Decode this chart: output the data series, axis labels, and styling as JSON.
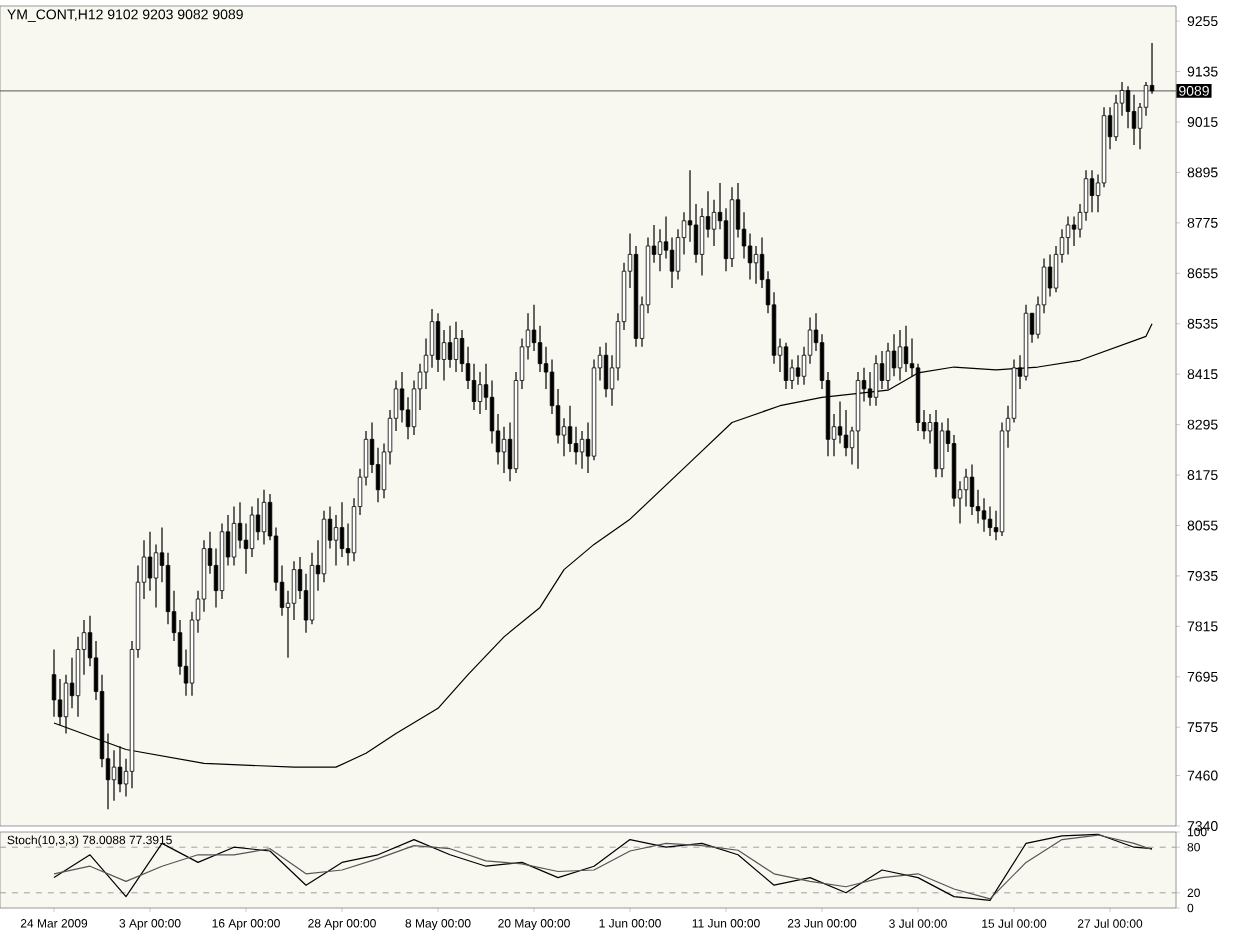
{
  "chart_data": [
    {
      "type": "candlestick",
      "title": "YM_CONT,H12 9102 9203 9082 9089",
      "color": "#000000",
      "tick_labels": "y",
      "ohlc": [
        [
          7700,
          7760,
          7600,
          7640
        ],
        [
          7640,
          7690,
          7580,
          7600
        ],
        [
          7600,
          7700,
          7560,
          7680
        ],
        [
          7680,
          7740,
          7620,
          7650
        ],
        [
          7650,
          7790,
          7600,
          7760
        ],
        [
          7760,
          7830,
          7700,
          7800
        ],
        [
          7800,
          7840,
          7720,
          7740
        ],
        [
          7740,
          7780,
          7640,
          7660
        ],
        [
          7660,
          7700,
          7480,
          7500
        ],
        [
          7500,
          7560,
          7380,
          7450
        ],
        [
          7450,
          7520,
          7400,
          7480
        ],
        [
          7480,
          7530,
          7420,
          7440
        ],
        [
          7440,
          7500,
          7410,
          7470
        ],
        [
          7470,
          7780,
          7430,
          7760
        ],
        [
          7760,
          7960,
          7740,
          7920
        ],
        [
          7920,
          8020,
          7880,
          7980
        ],
        [
          7980,
          8040,
          7900,
          7930
        ],
        [
          7930,
          8010,
          7860,
          7990
        ],
        [
          7990,
          8050,
          7920,
          7960
        ],
        [
          7960,
          7990,
          7820,
          7850
        ],
        [
          7850,
          7900,
          7780,
          7800
        ],
        [
          7800,
          7830,
          7700,
          7720
        ],
        [
          7720,
          7760,
          7650,
          7680
        ],
        [
          7680,
          7850,
          7650,
          7830
        ],
        [
          7830,
          7900,
          7800,
          7880
        ],
        [
          7880,
          8020,
          7850,
          8000
        ],
        [
          8000,
          8040,
          7940,
          7960
        ],
        [
          7960,
          8000,
          7860,
          7900
        ],
        [
          7900,
          8060,
          7880,
          8040
        ],
        [
          8040,
          8080,
          7960,
          7980
        ],
        [
          7980,
          8100,
          7960,
          8060
        ],
        [
          8060,
          8110,
          8000,
          8020
        ],
        [
          8020,
          8060,
          7940,
          8000
        ],
        [
          8000,
          8100,
          7980,
          8080
        ],
        [
          8080,
          8120,
          8020,
          8040
        ],
        [
          8040,
          8140,
          8010,
          8110
        ],
        [
          8110,
          8130,
          8020,
          8030
        ],
        [
          8030,
          8050,
          7900,
          7920
        ],
        [
          7920,
          7960,
          7840,
          7860
        ],
        [
          7860,
          7900,
          7740,
          7870
        ],
        [
          7870,
          7970,
          7830,
          7950
        ],
        [
          7950,
          7980,
          7880,
          7900
        ],
        [
          7900,
          7940,
          7800,
          7830
        ],
        [
          7830,
          7990,
          7820,
          7960
        ],
        [
          7960,
          8020,
          7900,
          7940
        ],
        [
          7940,
          8090,
          7920,
          8070
        ],
        [
          8070,
          8100,
          8000,
          8020
        ],
        [
          8020,
          8080,
          7960,
          8050
        ],
        [
          8050,
          8110,
          7980,
          8000
        ],
        [
          8000,
          8060,
          7960,
          7990
        ],
        [
          7990,
          8120,
          7970,
          8100
        ],
        [
          8100,
          8190,
          8080,
          8170
        ],
        [
          8170,
          8280,
          8150,
          8260
        ],
        [
          8260,
          8300,
          8180,
          8200
        ],
        [
          8200,
          8240,
          8110,
          8140
        ],
        [
          8140,
          8250,
          8120,
          8230
        ],
        [
          8230,
          8330,
          8200,
          8310
        ],
        [
          8310,
          8400,
          8280,
          8380
        ],
        [
          8380,
          8420,
          8300,
          8330
        ],
        [
          8330,
          8360,
          8260,
          8290
        ],
        [
          8290,
          8400,
          8270,
          8380
        ],
        [
          8380,
          8440,
          8330,
          8420
        ],
        [
          8420,
          8500,
          8380,
          8460
        ],
        [
          8460,
          8570,
          8430,
          8540
        ],
        [
          8540,
          8560,
          8420,
          8450
        ],
        [
          8450,
          8520,
          8400,
          8490
        ],
        [
          8490,
          8530,
          8430,
          8450
        ],
        [
          8450,
          8540,
          8420,
          8500
        ],
        [
          8500,
          8520,
          8420,
          8440
        ],
        [
          8440,
          8480,
          8380,
          8400
        ],
        [
          8400,
          8440,
          8330,
          8350
        ],
        [
          8350,
          8420,
          8320,
          8390
        ],
        [
          8390,
          8440,
          8330,
          8360
        ],
        [
          8360,
          8400,
          8250,
          8280
        ],
        [
          8280,
          8320,
          8200,
          8230
        ],
        [
          8230,
          8290,
          8180,
          8260
        ],
        [
          8260,
          8300,
          8160,
          8190
        ],
        [
          8190,
          8420,
          8180,
          8400
        ],
        [
          8400,
          8500,
          8380,
          8480
        ],
        [
          8480,
          8560,
          8450,
          8520
        ],
        [
          8520,
          8580,
          8470,
          8490
        ],
        [
          8490,
          8530,
          8420,
          8440
        ],
        [
          8440,
          8480,
          8380,
          8420
        ],
        [
          8420,
          8450,
          8320,
          8340
        ],
        [
          8340,
          8380,
          8250,
          8270
        ],
        [
          8270,
          8310,
          8220,
          8290
        ],
        [
          8290,
          8340,
          8230,
          8250
        ],
        [
          8250,
          8290,
          8200,
          8230
        ],
        [
          8230,
          8280,
          8190,
          8260
        ],
        [
          8260,
          8300,
          8180,
          8220
        ],
        [
          8220,
          8450,
          8210,
          8430
        ],
        [
          8430,
          8480,
          8400,
          8460
        ],
        [
          8460,
          8490,
          8360,
          8380
        ],
        [
          8380,
          8460,
          8340,
          8430
        ],
        [
          8430,
          8560,
          8400,
          8540
        ],
        [
          8540,
          8680,
          8520,
          8660
        ],
        [
          8660,
          8750,
          8620,
          8700
        ],
        [
          8700,
          8720,
          8480,
          8500
        ],
        [
          8500,
          8600,
          8480,
          8580
        ],
        [
          8580,
          8740,
          8560,
          8720
        ],
        [
          8720,
          8770,
          8680,
          8700
        ],
        [
          8700,
          8760,
          8660,
          8730
        ],
        [
          8730,
          8790,
          8690,
          8710
        ],
        [
          8710,
          8740,
          8620,
          8660
        ],
        [
          8660,
          8760,
          8640,
          8740
        ],
        [
          8740,
          8800,
          8700,
          8780
        ],
        [
          8780,
          8900,
          8730,
          8770
        ],
        [
          8770,
          8820,
          8680,
          8700
        ],
        [
          8700,
          8810,
          8650,
          8790
        ],
        [
          8790,
          8850,
          8740,
          8760
        ],
        [
          8760,
          8830,
          8720,
          8800
        ],
        [
          8800,
          8870,
          8760,
          8780
        ],
        [
          8780,
          8810,
          8660,
          8690
        ],
        [
          8690,
          8860,
          8670,
          8830
        ],
        [
          8830,
          8870,
          8740,
          8760
        ],
        [
          8760,
          8800,
          8690,
          8720
        ],
        [
          8720,
          8750,
          8640,
          8680
        ],
        [
          8680,
          8720,
          8630,
          8700
        ],
        [
          8700,
          8740,
          8620,
          8640
        ],
        [
          8640,
          8660,
          8560,
          8580
        ],
        [
          8580,
          8610,
          8440,
          8460
        ],
        [
          8460,
          8500,
          8420,
          8480
        ],
        [
          8480,
          8490,
          8380,
          8400
        ],
        [
          8400,
          8450,
          8380,
          8430
        ],
        [
          8430,
          8460,
          8390,
          8410
        ],
        [
          8410,
          8480,
          8390,
          8460
        ],
        [
          8460,
          8550,
          8440,
          8520
        ],
        [
          8520,
          8560,
          8470,
          8490
        ],
        [
          8490,
          8510,
          8380,
          8400
        ],
        [
          8400,
          8420,
          8220,
          8260
        ],
        [
          8260,
          8320,
          8220,
          8290
        ],
        [
          8290,
          8350,
          8250,
          8270
        ],
        [
          8270,
          8330,
          8220,
          8240
        ],
        [
          8240,
          8290,
          8200,
          8280
        ],
        [
          8280,
          8420,
          8190,
          8400
        ],
        [
          8400,
          8430,
          8350,
          8380
        ],
        [
          8380,
          8420,
          8340,
          8360
        ],
        [
          8360,
          8460,
          8340,
          8440
        ],
        [
          8440,
          8470,
          8380,
          8400
        ],
        [
          8400,
          8490,
          8380,
          8470
        ],
        [
          8470,
          8510,
          8410,
          8430
        ],
        [
          8430,
          8520,
          8400,
          8480
        ],
        [
          8480,
          8530,
          8420,
          8440
        ],
        [
          8440,
          8500,
          8410,
          8430
        ],
        [
          8430,
          8440,
          8280,
          8300
        ],
        [
          8300,
          8330,
          8260,
          8280
        ],
        [
          8280,
          8320,
          8250,
          8300
        ],
        [
          8300,
          8330,
          8170,
          8190
        ],
        [
          8190,
          8300,
          8170,
          8280
        ],
        [
          8280,
          8310,
          8230,
          8250
        ],
        [
          8250,
          8270,
          8100,
          8120
        ],
        [
          8120,
          8160,
          8060,
          8140
        ],
        [
          8140,
          8190,
          8100,
          8170
        ],
        [
          8170,
          8200,
          8080,
          8100
        ],
        [
          8100,
          8140,
          8060,
          8090
        ],
        [
          8090,
          8120,
          8040,
          8070
        ],
        [
          8070,
          8100,
          8030,
          8050
        ],
        [
          8050,
          8090,
          8020,
          8040
        ],
        [
          8040,
          8300,
          8030,
          8280
        ],
        [
          8280,
          8340,
          8240,
          8310
        ],
        [
          8310,
          8450,
          8300,
          8430
        ],
        [
          8430,
          8460,
          8380,
          8410
        ],
        [
          8410,
          8580,
          8400,
          8560
        ],
        [
          8560,
          8560,
          8490,
          8510
        ],
        [
          8510,
          8600,
          8500,
          8580
        ],
        [
          8580,
          8690,
          8560,
          8670
        ],
        [
          8670,
          8700,
          8600,
          8620
        ],
        [
          8620,
          8720,
          8610,
          8700
        ],
        [
          8700,
          8760,
          8680,
          8740
        ],
        [
          8740,
          8790,
          8700,
          8770
        ],
        [
          8770,
          8790,
          8720,
          8760
        ],
        [
          8760,
          8820,
          8740,
          8800
        ],
        [
          8800,
          8900,
          8780,
          8880
        ],
        [
          8880,
          8900,
          8800,
          8840
        ],
        [
          8840,
          8890,
          8800,
          8870
        ],
        [
          8870,
          9050,
          8860,
          9030
        ],
        [
          9030,
          9050,
          8950,
          8980
        ],
        [
          8980,
          9080,
          8970,
          9060
        ],
        [
          9060,
          9110,
          9030,
          9090
        ],
        [
          9090,
          9100,
          9000,
          9040
        ],
        [
          9040,
          9080,
          8960,
          9000
        ],
        [
          9000,
          9060,
          8950,
          9050
        ],
        [
          9050,
          9110,
          9030,
          9102
        ],
        [
          9102,
          9203,
          9082,
          9089
        ]
      ],
      "series": [
        {
          "type": "line",
          "color": "#000000",
          "values": [
            7585,
            null,
            null,
            null,
            null,
            null,
            null,
            null,
            null,
            null,
            null,
            null,
            7522,
            null,
            null,
            null,
            null,
            null,
            null,
            null,
            null,
            null,
            null,
            null,
            null,
            7489,
            null,
            null,
            null,
            null,
            null,
            null,
            null,
            null,
            null,
            null,
            null,
            null,
            null,
            null,
            7480,
            null,
            null,
            null,
            null,
            null,
            null,
            7480,
            null,
            null,
            null,
            null,
            7513,
            null,
            null,
            null,
            null,
            7560,
            null,
            null,
            null,
            null,
            null,
            null,
            7620,
            null,
            null,
            null,
            null,
            7700,
            null,
            null,
            null,
            null,
            null,
            7790,
            null,
            null,
            null,
            null,
            null,
            7860,
            null,
            null,
            null,
            7950,
            null,
            null,
            null,
            null,
            8010,
            null,
            null,
            null,
            null,
            null,
            8070,
            null,
            null,
            null,
            null,
            null,
            null,
            null,
            null,
            null,
            8205,
            null,
            null,
            null,
            null,
            null,
            null,
            8300,
            null,
            null,
            null,
            null,
            null,
            null,
            null,
            8340,
            null,
            null,
            null,
            null,
            null,
            null,
            8360,
            null,
            null,
            null,
            null,
            null,
            null,
            null,
            null,
            null,
            null,
            8377,
            null,
            null,
            null,
            null,
            8418,
            null,
            null,
            null,
            null,
            null,
            8432,
            null,
            null,
            null,
            null,
            null,
            null,
            8425,
            null,
            null,
            null,
            null,
            null,
            null,
            8432,
            null,
            null,
            null,
            null,
            null,
            null,
            8448,
            null,
            null,
            null,
            null,
            null,
            null,
            null,
            null,
            null,
            null,
            8505,
            8535
          ]
        }
      ],
      "ylim": [
        7340,
        9291
      ],
      "yticks": [
        9255,
        9135,
        9015,
        8895,
        8775,
        8655,
        8535,
        8415,
        8295,
        8175,
        8055,
        7935,
        7815,
        7695,
        7575,
        7460,
        7340
      ],
      "ref_lines": [
        {
          "axis": "y",
          "value": 9089,
          "label": "9089",
          "color": "#555555",
          "line_style": "solid"
        }
      ]
    },
    {
      "type": "line",
      "title": "Stoch(10,3,3) 78.0088 77.3915",
      "categories": [
        "24 Mar 2009",
        null,
        null,
        null,
        null,
        null,
        null,
        null,
        null,
        null,
        null,
        null,
        null,
        null,
        null,
        null,
        "3 Apr 00:00",
        null,
        null,
        null,
        null,
        null,
        null,
        null,
        null,
        null,
        null,
        null,
        null,
        null,
        null,
        null,
        "16 Apr 00:00",
        null,
        null,
        null,
        null,
        null,
        null,
        null,
        null,
        null,
        null,
        null,
        null,
        null,
        null,
        null,
        "28 Apr 00:00",
        null,
        null,
        null,
        null,
        null,
        null,
        null,
        null,
        null,
        null,
        null,
        null,
        null,
        null,
        null,
        "8 May 00:00",
        null,
        null,
        null,
        null,
        null,
        null,
        null,
        null,
        null,
        null,
        null,
        null,
        null,
        null,
        null,
        "20 May 00:00",
        null,
        null,
        null,
        null,
        null,
        null,
        null,
        null,
        null,
        null,
        null,
        null,
        null,
        null,
        null,
        "1 Jun 00:00",
        null,
        null,
        null,
        null,
        null,
        null,
        null,
        null,
        null,
        null,
        null,
        null,
        null,
        null,
        null,
        "11 Jun 00:00",
        null,
        null,
        null,
        null,
        null,
        null,
        null,
        null,
        null,
        null,
        null,
        null,
        null,
        null,
        null,
        "23 Jun 00:00",
        null,
        null,
        null,
        null,
        null,
        null,
        null,
        null,
        null,
        null,
        null,
        null,
        null,
        null,
        null,
        "3 Jul 00:00",
        null,
        null,
        null,
        null,
        null,
        null,
        null,
        null,
        null,
        null,
        null,
        null,
        null,
        null,
        null,
        "15 Jul 00:00",
        null,
        null,
        null,
        null,
        null,
        null,
        null,
        null,
        null,
        null,
        null,
        null,
        null,
        null,
        null,
        "27 Jul 00:00",
        null,
        null,
        null,
        null,
        null,
        null,
        null
      ],
      "series": [
        {
          "color": "#000000",
          "values": [
            40,
            null,
            null,
            null,
            null,
            null,
            70,
            null,
            null,
            null,
            null,
            null,
            15,
            null,
            null,
            null,
            null,
            null,
            85,
            null,
            null,
            null,
            null,
            null,
            60,
            null,
            null,
            null,
            null,
            null,
            80,
            null,
            null,
            null,
            null,
            null,
            75,
            null,
            null,
            null,
            null,
            null,
            30,
            null,
            null,
            null,
            null,
            null,
            60,
            null,
            null,
            null,
            null,
            null,
            70,
            null,
            null,
            null,
            null,
            null,
            90,
            null,
            null,
            null,
            null,
            null,
            70,
            null,
            null,
            null,
            null,
            null,
            55,
            null,
            null,
            null,
            null,
            null,
            60,
            null,
            null,
            null,
            null,
            null,
            40,
            null,
            null,
            null,
            null,
            null,
            55,
            null,
            null,
            null,
            null,
            null,
            90,
            null,
            null,
            null,
            null,
            null,
            80,
            null,
            null,
            null,
            null,
            null,
            85,
            null,
            null,
            null,
            null,
            null,
            70,
            null,
            null,
            null,
            null,
            null,
            30,
            null,
            null,
            null,
            null,
            null,
            40,
            null,
            null,
            null,
            null,
            null,
            20,
            null,
            null,
            null,
            null,
            null,
            50,
            null,
            null,
            null,
            null,
            null,
            40,
            null,
            null,
            null,
            null,
            null,
            15,
            null,
            null,
            null,
            null,
            null,
            10,
            null,
            null,
            null,
            null,
            null,
            85,
            null,
            null,
            null,
            null,
            null,
            95,
            null,
            null,
            null,
            null,
            null,
            97,
            null,
            null,
            null,
            null,
            null,
            80,
            null,
            null,
            78
          ]
        },
        {
          "color": "#555555",
          "values": [
            45,
            null,
            null,
            null,
            null,
            null,
            55,
            null,
            null,
            null,
            null,
            null,
            35,
            null,
            null,
            null,
            null,
            null,
            55,
            null,
            null,
            null,
            null,
            null,
            70,
            null,
            null,
            null,
            null,
            null,
            70,
            null,
            null,
            null,
            null,
            null,
            78,
            null,
            null,
            null,
            null,
            null,
            45,
            null,
            null,
            null,
            null,
            null,
            50,
            null,
            null,
            null,
            null,
            null,
            65,
            null,
            null,
            null,
            null,
            null,
            82,
            null,
            null,
            null,
            null,
            null,
            78,
            null,
            null,
            null,
            null,
            null,
            62,
            null,
            null,
            null,
            null,
            null,
            58,
            null,
            null,
            null,
            null,
            null,
            48,
            null,
            null,
            null,
            null,
            null,
            50,
            null,
            null,
            null,
            null,
            null,
            75,
            null,
            null,
            null,
            null,
            null,
            85,
            null,
            null,
            null,
            null,
            null,
            82,
            null,
            null,
            null,
            null,
            null,
            76,
            null,
            null,
            null,
            null,
            null,
            45,
            null,
            null,
            null,
            null,
            null,
            35,
            null,
            null,
            null,
            null,
            null,
            28,
            null,
            null,
            null,
            null,
            null,
            40,
            null,
            null,
            null,
            null,
            null,
            45,
            null,
            null,
            null,
            null,
            null,
            25,
            null,
            null,
            null,
            null,
            null,
            12,
            null,
            null,
            null,
            null,
            null,
            60,
            null,
            null,
            null,
            null,
            null,
            90,
            null,
            null,
            null,
            null,
            null,
            96,
            null,
            null,
            null,
            null,
            null,
            85,
            null,
            null,
            77
          ]
        }
      ],
      "ylim": [
        0,
        100
      ],
      "yticks": [
        0,
        20,
        80,
        100
      ],
      "ref_lines": [
        {
          "axis": "y",
          "value": 80,
          "color": "#a0a0a0",
          "line_style": "dashed"
        },
        {
          "axis": "y",
          "value": 20,
          "color": "#a0a0a0",
          "line_style": "dashed"
        }
      ]
    }
  ]
}
